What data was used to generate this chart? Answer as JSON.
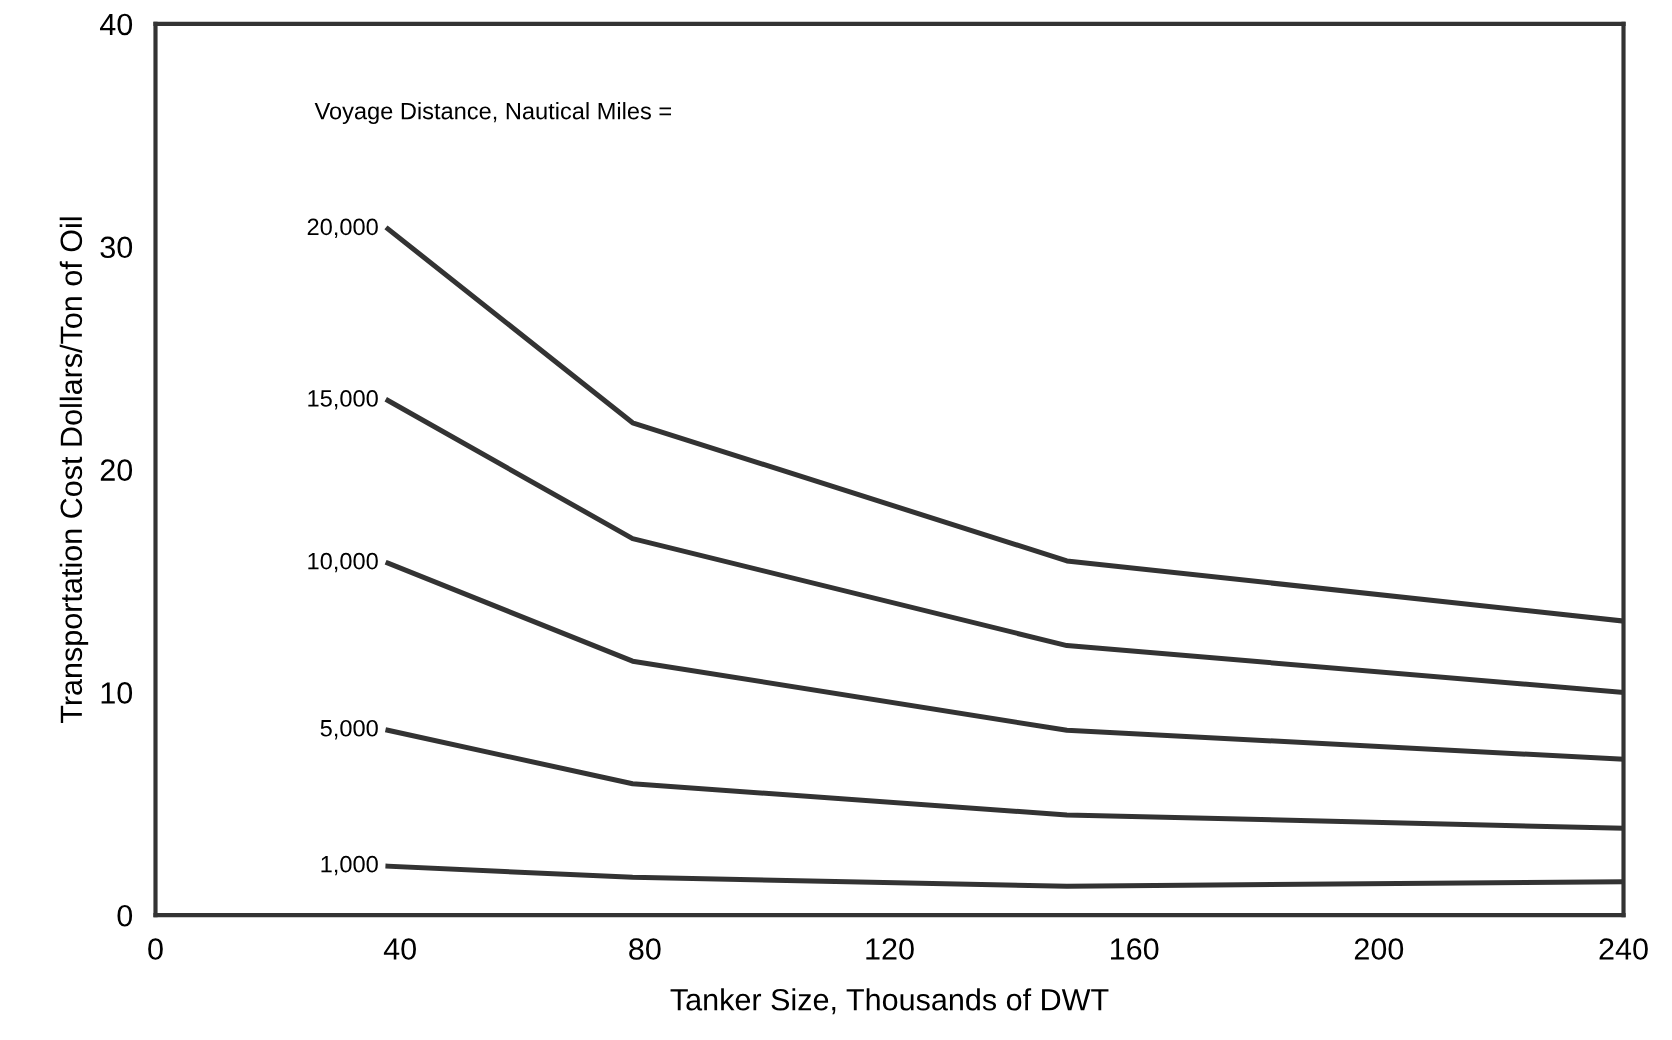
{
  "chart_data": {
    "type": "line",
    "xlabel": "Tanker Size, Thousands of DWT",
    "ylabel": "Transportation Cost Dollars/Ton of Oil",
    "legend_title": "Voyage Distance, Nautical Miles =",
    "x": [
      38,
      78,
      149,
      240
    ],
    "series": [
      {
        "name": "20,000",
        "color": "#333333",
        "values": [
          30.8,
          22.1,
          15.9,
          13.2
        ]
      },
      {
        "name": "15,000",
        "color": "#333333",
        "values": [
          23.1,
          16.9,
          12.1,
          10.0
        ]
      },
      {
        "name": "10,000",
        "color": "#333333",
        "values": [
          15.8,
          11.4,
          8.3,
          7.0
        ]
      },
      {
        "name": "5,000",
        "color": "#333333",
        "values": [
          8.3,
          5.9,
          4.5,
          3.9
        ]
      },
      {
        "name": "1,000",
        "color": "#333333",
        "values": [
          2.2,
          1.7,
          1.3,
          1.5
        ]
      }
    ],
    "xlim": [
      0,
      240
    ],
    "ylim": [
      0,
      40
    ],
    "xticks": [
      0,
      40,
      80,
      120,
      160,
      200,
      240
    ],
    "yticks": [
      0,
      10,
      20,
      30,
      40
    ],
    "grid": false,
    "marker": "none",
    "line_style": "solid"
  }
}
